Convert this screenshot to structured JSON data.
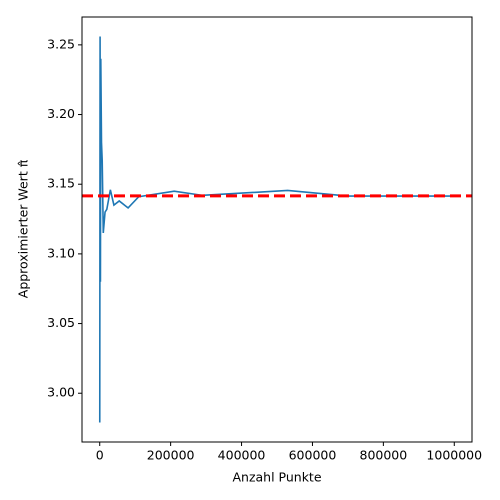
{
  "chart_data": {
    "type": "line",
    "xlabel": "Anzahl Punkte",
    "ylabel": "Approximierter Wert π̂",
    "x": [
      100,
      1000,
      2000,
      3000,
      5000,
      7000,
      10000,
      15000,
      20000,
      30000,
      40000,
      55000,
      80000,
      110000,
      210000,
      290000,
      530000,
      700000,
      1000000
    ],
    "series": [
      {
        "color": "#1f77b4",
        "values": [
          2.979,
          3.256,
          3.08,
          3.24,
          3.18,
          3.167,
          3.115,
          3.13,
          3.132,
          3.146,
          3.135,
          3.138,
          3.133,
          3.141,
          3.145,
          3.142,
          3.1455,
          3.1415,
          3.1415
        ]
      }
    ],
    "hline": {
      "value": 3.14159,
      "color": "#ff0000"
    },
    "xlim": [
      -50000,
      1050000
    ],
    "ylim": [
      2.965,
      3.27
    ],
    "xticks": [
      0,
      200000,
      400000,
      600000,
      800000,
      1000000
    ],
    "yticks": [
      {
        "value": 3.0,
        "label": "3.00"
      },
      3.05,
      {
        "value": 3.1,
        "label": "3.10"
      },
      3.15,
      {
        "value": 3.2,
        "label": "3.20"
      },
      3.25
    ]
  }
}
